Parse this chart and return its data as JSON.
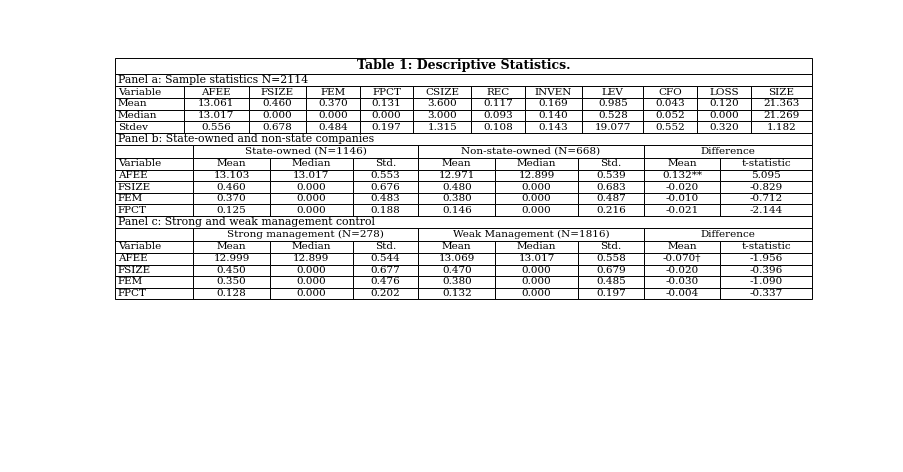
{
  "title": "Table 1: Descriptive Statistics.",
  "panel_a_label": "Panel a: Sample statistics N=2114",
  "panel_b_label": "Panel b: State-owned and non-state companies",
  "panel_c_label": "Panel c: Strong and weak management control",
  "panel_a_headers": [
    "Variable",
    "AFEE",
    "FSIZE",
    "FEM",
    "FPCT",
    "CSIZE",
    "REC",
    "INVEN",
    "LEV",
    "CFO",
    "LOSS",
    "SIZE"
  ],
  "panel_a_rows": [
    [
      "Mean",
      "13.061",
      "0.460",
      "0.370",
      "0.131",
      "3.600",
      "0.117",
      "0.169",
      "0.985",
      "0.043",
      "0.120",
      "21.363"
    ],
    [
      "Median",
      "13.017",
      "0.000",
      "0.000",
      "0.000",
      "3.000",
      "0.093",
      "0.140",
      "0.528",
      "0.052",
      "0.000",
      "21.269"
    ],
    [
      "Stdev",
      "0.556",
      "0.678",
      "0.484",
      "0.197",
      "1.315",
      "0.108",
      "0.143",
      "19.077",
      "0.552",
      "0.320",
      "1.182"
    ]
  ],
  "panel_b_group1_header": "State-owned (N=1146)",
  "panel_b_group2_header": "Non-state-owned (N=668)",
  "panel_b_diff_header": "Difference",
  "panel_bc_subheaders": [
    "Variable",
    "Mean",
    "Median",
    "Std.",
    "Mean",
    "Median",
    "Std.",
    "Mean",
    "t-statistic"
  ],
  "panel_b_rows": [
    [
      "AFEE",
      "13.103",
      "13.017",
      "0.553",
      "12.971",
      "12.899",
      "0.539",
      "0.132**",
      "5.095"
    ],
    [
      "FSIZE",
      "0.460",
      "0.000",
      "0.676",
      "0.480",
      "0.000",
      "0.683",
      "-0.020",
      "-0.829"
    ],
    [
      "FEM",
      "0.370",
      "0.000",
      "0.483",
      "0.380",
      "0.000",
      "0.487",
      "-0.010",
      "-0.712"
    ],
    [
      "FPCT",
      "0.125",
      "0.000",
      "0.188",
      "0.146",
      "0.000",
      "0.216",
      "-0.021",
      "-2.144"
    ]
  ],
  "panel_c_group1_header": "Strong management (N=278)",
  "panel_c_group2_header": "Weak Management (N=1816)",
  "panel_c_diff_header": "Difference",
  "panel_c_rows": [
    [
      "AFEE",
      "12.999",
      "12.899",
      "0.544",
      "13.069",
      "13.017",
      "0.558",
      "-0.070†",
      "-1.956"
    ],
    [
      "FSIZE",
      "0.450",
      "0.000",
      "0.677",
      "0.470",
      "0.000",
      "0.679",
      "-0.020",
      "-0.396"
    ],
    [
      "FEM",
      "0.350",
      "0.000",
      "0.476",
      "0.380",
      "0.000",
      "0.485",
      "-0.030",
      "-1.090"
    ],
    [
      "FPCT",
      "0.128",
      "0.000",
      "0.202",
      "0.132",
      "0.000",
      "0.197",
      "-0.004",
      "-0.337"
    ]
  ]
}
